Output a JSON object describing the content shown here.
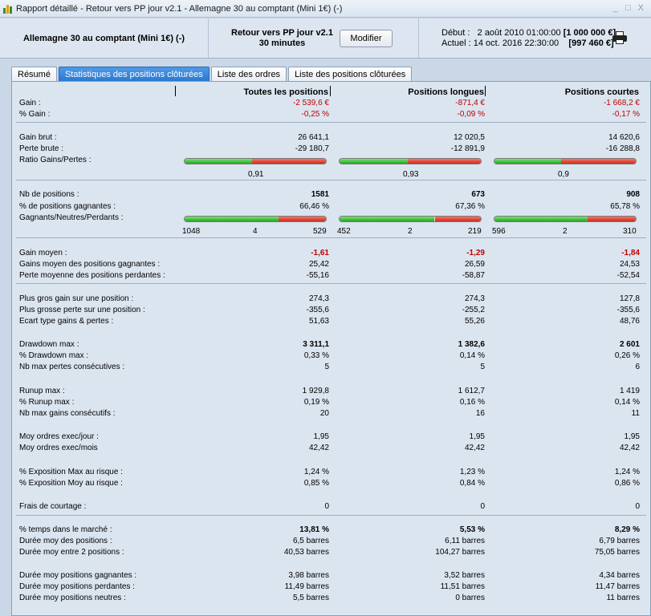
{
  "window": {
    "title": "Rapport détaillé - Retour vers PP jour v2.1 - Allemagne 30 au comptant (Mini 1€) (-)",
    "controls": "_ □ X"
  },
  "header": {
    "instrument": "Allemagne 30 au comptant (Mini 1€) (-)",
    "strategy_name": "Retour vers PP jour v2.1",
    "strategy_period": "30 minutes",
    "modify_label": "Modifier",
    "start_label": "Début :",
    "start_date": "2 août 2010 01:00:00",
    "start_capital": "[1 000 000 €]",
    "current_label": "Actuel :",
    "current_date": "14 oct. 2016 22:30:00",
    "current_capital": "[997 460 €]"
  },
  "tabs": [
    {
      "label": "Résumé",
      "active": false
    },
    {
      "label": "Statistiques des positions clôturées",
      "active": true
    },
    {
      "label": "Liste des ordres",
      "active": false
    },
    {
      "label": "Liste des positions clôturées",
      "active": false
    }
  ],
  "columns": {
    "all": "Toutes les positions",
    "long": "Positions longues",
    "short": "Positions courtes"
  },
  "colors": {
    "negative": "#c00000",
    "win_bar": "#22a81e",
    "loss_bar": "#d02a1a"
  },
  "rows": [
    {
      "label": "Gain :",
      "all": "-2 539,6 €",
      "long": "-871,4 €",
      "short": "-1 668,2 €",
      "neg": true
    },
    {
      "label": "% Gain :",
      "all": "-0,25 %",
      "long": "-0,09 %",
      "short": "-0,17 %",
      "neg": true
    },
    {
      "label": "Gain brut :",
      "all": "26 641,1",
      "long": "12 020,5",
      "short": "14 620,6"
    },
    {
      "label": "Perte brute :",
      "all": "-29 180,7",
      "long": "-12 891,9",
      "short": "-16 288,8"
    },
    {
      "label": "Ratio Gains/Pertes :",
      "all": "0,91",
      "long": "0,93",
      "short": "0,9"
    },
    {
      "label": "Nb de positions :",
      "all": "1581",
      "long": "673",
      "short": "908",
      "bold": true
    },
    {
      "label": "% de positions gagnantes :",
      "all": "66,46 %",
      "long": "67,36 %",
      "short": "65,78 %"
    },
    {
      "label": "Gagnants/Neutres/Perdants :"
    },
    {
      "label": "Gain moyen :",
      "all": "-1,61",
      "long": "-1,29",
      "short": "-1,84",
      "neg": true,
      "bold": true
    },
    {
      "label": "Gains moyen des positions gagnantes :",
      "all": "25,42",
      "long": "26,59",
      "short": "24,53"
    },
    {
      "label": "Perte moyenne des positions perdantes :",
      "all": "-55,16",
      "long": "-58,87",
      "short": "-52,54"
    },
    {
      "label": "Plus gros gain sur une position :",
      "all": "274,3",
      "long": "274,3",
      "short": "127,8"
    },
    {
      "label": "Plus grosse perte sur une position :",
      "all": "-355,6",
      "long": "-255,2",
      "short": "-355,6"
    },
    {
      "label": "Ecart type gains & pertes :",
      "all": "51,63",
      "long": "55,26",
      "short": "48,76"
    },
    {
      "label": "Drawdown max :",
      "all": "3 311,1",
      "long": "1 382,6",
      "short": "2 601",
      "bold": true
    },
    {
      "label": "% Drawdown max :",
      "all": "0,33 %",
      "long": "0,14 %",
      "short": "0,26 %"
    },
    {
      "label": "Nb max pertes consécutives :",
      "all": "5",
      "long": "5",
      "short": "6"
    },
    {
      "label": "Runup max :",
      "all": "1 929,8",
      "long": "1 612,7",
      "short": "1 419"
    },
    {
      "label": "% Runup max :",
      "all": "0,19 %",
      "long": "0,16 %",
      "short": "0,14 %"
    },
    {
      "label": "Nb max gains consécutifs :",
      "all": "20",
      "long": "16",
      "short": "11"
    },
    {
      "label": "Moy ordres exec/jour :",
      "all": "1,95",
      "long": "1,95",
      "short": "1,95"
    },
    {
      "label": "Moy ordres exec/mois",
      "all": "42,42",
      "long": "42,42",
      "short": "42,42"
    },
    {
      "label": "% Exposition Max au risque :",
      "all": "1,24 %",
      "long": "1,23 %",
      "short": "1,24 %"
    },
    {
      "label": "% Exposition Moy au risque :",
      "all": "0,85 %",
      "long": "0,84 %",
      "short": "0,86 %"
    },
    {
      "label": "Frais de courtage :",
      "all": "0",
      "long": "0",
      "short": "0"
    },
    {
      "label": "% temps dans le marché :",
      "all": "13,81 %",
      "long": "5,53 %",
      "short": "8,29 %",
      "bold": true
    },
    {
      "label": "Durée moy des positions :",
      "all": "6,5 barres",
      "long": "6,11 barres",
      "short": "6,79 barres"
    },
    {
      "label": "Durée moy entre 2 positions :",
      "all": "40,53 barres",
      "long": "104,27 barres",
      "short": "75,05 barres"
    },
    {
      "label": "Durée moy positions gagnantes :",
      "all": "3,98 barres",
      "long": "3,52 barres",
      "short": "4,34 barres"
    },
    {
      "label": "Durée moy positions perdantes :",
      "all": "11,49 barres",
      "long": "11,51 barres",
      "short": "11,47 barres"
    },
    {
      "label": "Durée moy positions neutres :",
      "all": "5,5 barres",
      "long": "0 barres",
      "short": "11 barres"
    }
  ],
  "ratio_bars": {
    "all": {
      "gains": 26641.1,
      "losses": 29180.7
    },
    "long": {
      "gains": 12020.5,
      "losses": 12891.9
    },
    "short": {
      "gains": 14620.6,
      "losses": 16288.8
    }
  },
  "wnl": {
    "all": {
      "win": "1048",
      "neutral": "4",
      "loss": "529"
    },
    "long": {
      "win": "452",
      "neutral": "2",
      "loss": "219"
    },
    "short": {
      "win": "596",
      "neutral": "2",
      "loss": "310"
    }
  }
}
